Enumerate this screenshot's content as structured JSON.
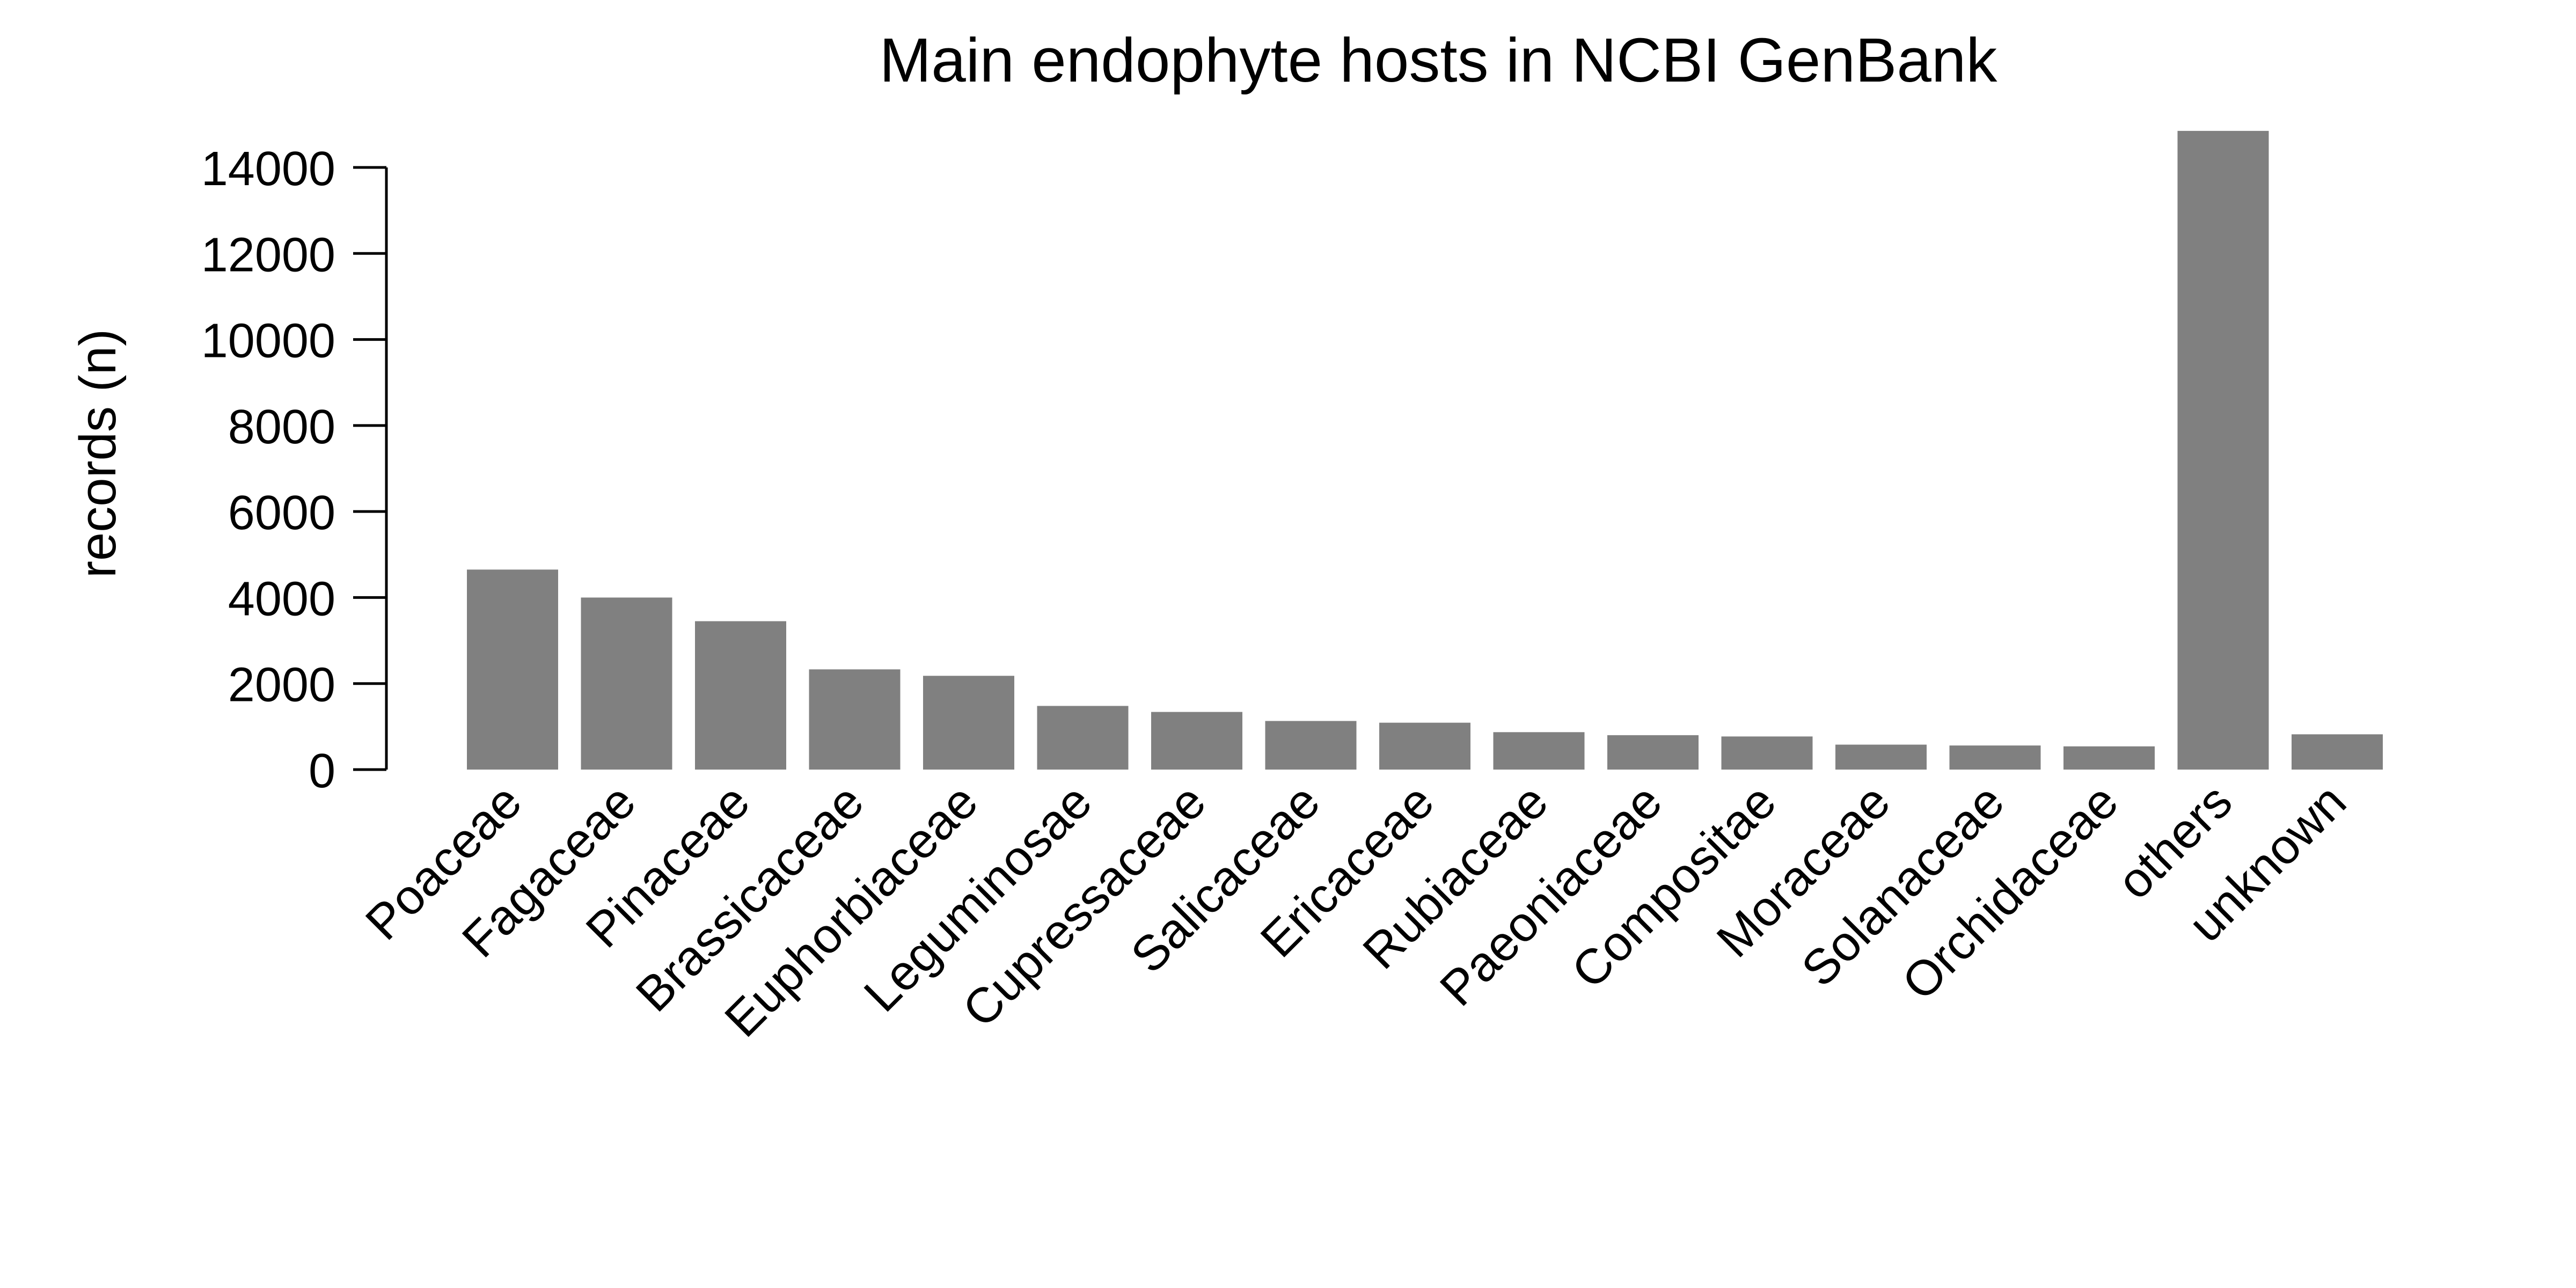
{
  "chart_data": {
    "type": "bar",
    "title": "Main endophyte hosts in NCBI GenBank",
    "xlabel": "",
    "ylabel": "records (n)",
    "ylim": [
      0,
      14000
    ],
    "yticks": [
      0,
      2000,
      4000,
      6000,
      8000,
      10000,
      12000,
      14000
    ],
    "grid": false,
    "legend": "none",
    "bar_color": "#808080",
    "categories": [
      "Poaceae",
      "Fagaceae",
      "Pinaceae",
      "Brassicaceae",
      "Euphorbiaceae",
      "Leguminosae",
      "Cupressaceae",
      "Salicaceae",
      "Ericaceae",
      "Rubiaceae",
      "Paeoniaceae",
      "Compositae",
      "Moraceae",
      "Solanaceae",
      "Orchidaceae",
      "others",
      "unknown"
    ],
    "values": [
      4650,
      4000,
      3450,
      2330,
      2180,
      1480,
      1340,
      1130,
      1090,
      870,
      800,
      770,
      580,
      560,
      540,
      14850,
      820
    ]
  }
}
